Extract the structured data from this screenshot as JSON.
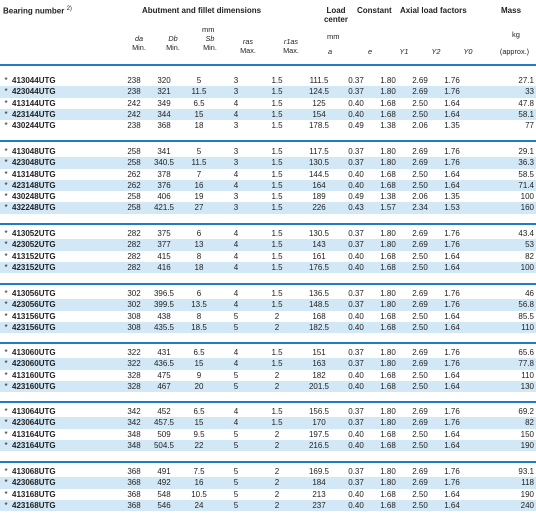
{
  "header": {
    "bearing_number": "Bearing number",
    "bearing_number_note": "2)",
    "abutment_title": "Abutment and fillet dimensions",
    "load_center_title": "Load center",
    "constant_title": "Constant",
    "axial_title": "Axial load factors",
    "mass_title": "Mass",
    "unit_mm_1": "mm",
    "unit_mm_2": "mm",
    "unit_kg": "kg",
    "col_da": "da",
    "col_Db": "Db",
    "col_Sb": "Sb",
    "col_ras": "ras",
    "col_r1as": "r1as",
    "col_a": "a",
    "col_e": "e",
    "col_Y1": "Y1",
    "col_Y2": "Y2",
    "col_Y0": "Y0",
    "min1": "Min.",
    "min2": "Min.",
    "min3": "Min.",
    "max1": "Max.",
    "max2": "Max.",
    "approx": "(approx.)"
  },
  "groups": [
    {
      "rows": [
        {
          "mark": "*",
          "bn": "413044UTG",
          "da": "238",
          "Db": "320",
          "Sb": "5",
          "ras": "3",
          "r1as": "1.5",
          "a": "111.5",
          "e": "0.37",
          "Y1": "1.80",
          "Y2": "2.69",
          "Y0": "1.76",
          "mass": "27.1"
        },
        {
          "mark": "*",
          "bn": "423044UTG",
          "da": "238",
          "Db": "321",
          "Sb": "11.5",
          "ras": "3",
          "r1as": "1.5",
          "a": "124.5",
          "e": "0.37",
          "Y1": "1.80",
          "Y2": "2.69",
          "Y0": "1.76",
          "mass": "33"
        },
        {
          "mark": "*",
          "bn": "413144UTG",
          "da": "242",
          "Db": "349",
          "Sb": "6.5",
          "ras": "4",
          "r1as": "1.5",
          "a": "125",
          "e": "0.40",
          "Y1": "1.68",
          "Y2": "2.50",
          "Y0": "1.64",
          "mass": "47.8"
        },
        {
          "mark": "*",
          "bn": "423144UTG",
          "da": "242",
          "Db": "344",
          "Sb": "15",
          "ras": "4",
          "r1as": "1.5",
          "a": "154",
          "e": "0.40",
          "Y1": "1.68",
          "Y2": "2.50",
          "Y0": "1.64",
          "mass": "58.1"
        },
        {
          "mark": "*",
          "bn": "430244UTG",
          "da": "238",
          "Db": "368",
          "Sb": "18",
          "ras": "3",
          "r1as": "1.5",
          "a": "178.5",
          "e": "0.49",
          "Y1": "1.38",
          "Y2": "2.06",
          "Y0": "1.35",
          "mass": "77"
        }
      ]
    },
    {
      "rows": [
        {
          "mark": "*",
          "bn": "413048UTG",
          "da": "258",
          "Db": "341",
          "Sb": "5",
          "ras": "3",
          "r1as": "1.5",
          "a": "117.5",
          "e": "0.37",
          "Y1": "1.80",
          "Y2": "2.69",
          "Y0": "1.76",
          "mass": "29.1"
        },
        {
          "mark": "*",
          "bn": "423048UTG",
          "da": "258",
          "Db": "340.5",
          "Sb": "11.5",
          "ras": "3",
          "r1as": "1.5",
          "a": "130.5",
          "e": "0.37",
          "Y1": "1.80",
          "Y2": "2.69",
          "Y0": "1.76",
          "mass": "36.3"
        },
        {
          "mark": "*",
          "bn": "413148UTG",
          "da": "262",
          "Db": "378",
          "Sb": "7",
          "ras": "4",
          "r1as": "1.5",
          "a": "144.5",
          "e": "0.40",
          "Y1": "1.68",
          "Y2": "2.50",
          "Y0": "1.64",
          "mass": "58.5"
        },
        {
          "mark": "*",
          "bn": "423148UTG",
          "da": "262",
          "Db": "376",
          "Sb": "16",
          "ras": "4",
          "r1as": "1.5",
          "a": "164",
          "e": "0.40",
          "Y1": "1.68",
          "Y2": "2.50",
          "Y0": "1.64",
          "mass": "71.4"
        },
        {
          "mark": "*",
          "bn": "430248UTG",
          "da": "258",
          "Db": "406",
          "Sb": "19",
          "ras": "3",
          "r1as": "1.5",
          "a": "189",
          "e": "0.49",
          "Y1": "1.38",
          "Y2": "2.06",
          "Y0": "1.35",
          "mass": "100"
        },
        {
          "mark": "*",
          "bn": "432248UTG",
          "da": "258",
          "Db": "421.5",
          "Sb": "27",
          "ras": "3",
          "r1as": "1.5",
          "a": "226",
          "e": "0.43",
          "Y1": "1.57",
          "Y2": "2.34",
          "Y0": "1.53",
          "mass": "160"
        }
      ]
    },
    {
      "rows": [
        {
          "mark": "*",
          "bn": "413052UTG",
          "da": "282",
          "Db": "375",
          "Sb": "6",
          "ras": "4",
          "r1as": "1.5",
          "a": "130.5",
          "e": "0.37",
          "Y1": "1.80",
          "Y2": "2.69",
          "Y0": "1.76",
          "mass": "43.4"
        },
        {
          "mark": "*",
          "bn": "423052UTG",
          "da": "282",
          "Db": "377",
          "Sb": "13",
          "ras": "4",
          "r1as": "1.5",
          "a": "143",
          "e": "0.37",
          "Y1": "1.80",
          "Y2": "2.69",
          "Y0": "1.76",
          "mass": "53"
        },
        {
          "mark": "*",
          "bn": "413152UTG",
          "da": "282",
          "Db": "415",
          "Sb": "8",
          "ras": "4",
          "r1as": "1.5",
          "a": "161",
          "e": "0.40",
          "Y1": "1.68",
          "Y2": "2.50",
          "Y0": "1.64",
          "mass": "82"
        },
        {
          "mark": "*",
          "bn": "423152UTG",
          "da": "282",
          "Db": "416",
          "Sb": "18",
          "ras": "4",
          "r1as": "1.5",
          "a": "176.5",
          "e": "0.40",
          "Y1": "1.68",
          "Y2": "2.50",
          "Y0": "1.64",
          "mass": "100"
        }
      ]
    },
    {
      "rows": [
        {
          "mark": "*",
          "bn": "413056UTG",
          "da": "302",
          "Db": "396.5",
          "Sb": "6",
          "ras": "4",
          "r1as": "1.5",
          "a": "136.5",
          "e": "0.37",
          "Y1": "1.80",
          "Y2": "2.69",
          "Y0": "1.76",
          "mass": "46"
        },
        {
          "mark": "*",
          "bn": "423056UTG",
          "da": "302",
          "Db": "399.5",
          "Sb": "13.5",
          "ras": "4",
          "r1as": "1.5",
          "a": "148.5",
          "e": "0.37",
          "Y1": "1.80",
          "Y2": "2.69",
          "Y0": "1.76",
          "mass": "56.8"
        },
        {
          "mark": "*",
          "bn": "413156UTG",
          "da": "308",
          "Db": "438",
          "Sb": "8",
          "ras": "5",
          "r1as": "2",
          "a": "168",
          "e": "0.40",
          "Y1": "1.68",
          "Y2": "2.50",
          "Y0": "1.64",
          "mass": "85.5"
        },
        {
          "mark": "*",
          "bn": "423156UTG",
          "da": "308",
          "Db": "435.5",
          "Sb": "18.5",
          "ras": "5",
          "r1as": "2",
          "a": "182.5",
          "e": "0.40",
          "Y1": "1.68",
          "Y2": "2.50",
          "Y0": "1.64",
          "mass": "110"
        }
      ]
    },
    {
      "rows": [
        {
          "mark": "*",
          "bn": "413060UTG",
          "da": "322",
          "Db": "431",
          "Sb": "6.5",
          "ras": "4",
          "r1as": "1.5",
          "a": "151",
          "e": "0.37",
          "Y1": "1.80",
          "Y2": "2.69",
          "Y0": "1.76",
          "mass": "65.6"
        },
        {
          "mark": "*",
          "bn": "423060UTG",
          "da": "322",
          "Db": "436.5",
          "Sb": "15",
          "ras": "4",
          "r1as": "1.5",
          "a": "163",
          "e": "0.37",
          "Y1": "1.80",
          "Y2": "2.69",
          "Y0": "1.76",
          "mass": "77.8"
        },
        {
          "mark": "*",
          "bn": "413160UTG",
          "da": "328",
          "Db": "475",
          "Sb": "9",
          "ras": "5",
          "r1as": "2",
          "a": "182",
          "e": "0.40",
          "Y1": "1.68",
          "Y2": "2.50",
          "Y0": "1.64",
          "mass": "110"
        },
        {
          "mark": "*",
          "bn": "423160UTG",
          "da": "328",
          "Db": "467",
          "Sb": "20",
          "ras": "5",
          "r1as": "2",
          "a": "201.5",
          "e": "0.40",
          "Y1": "1.68",
          "Y2": "2.50",
          "Y0": "1.64",
          "mass": "130"
        }
      ]
    },
    {
      "rows": [
        {
          "mark": "*",
          "bn": "413064UTG",
          "da": "342",
          "Db": "452",
          "Sb": "6.5",
          "ras": "4",
          "r1as": "1.5",
          "a": "156.5",
          "e": "0.37",
          "Y1": "1.80",
          "Y2": "2.69",
          "Y0": "1.76",
          "mass": "69.2"
        },
        {
          "mark": "*",
          "bn": "423064UTG",
          "da": "342",
          "Db": "457.5",
          "Sb": "15",
          "ras": "4",
          "r1as": "1.5",
          "a": "170",
          "e": "0.37",
          "Y1": "1.80",
          "Y2": "2.69",
          "Y0": "1.76",
          "mass": "82"
        },
        {
          "mark": "*",
          "bn": "413164UTG",
          "da": "348",
          "Db": "509",
          "Sb": "9.5",
          "ras": "5",
          "r1as": "2",
          "a": "197.5",
          "e": "0.40",
          "Y1": "1.68",
          "Y2": "2.50",
          "Y0": "1.64",
          "mass": "150"
        },
        {
          "mark": "*",
          "bn": "423164UTG",
          "da": "348",
          "Db": "504.5",
          "Sb": "22",
          "ras": "5",
          "r1as": "2",
          "a": "216.5",
          "e": "0.40",
          "Y1": "1.68",
          "Y2": "2.50",
          "Y0": "1.64",
          "mass": "190"
        }
      ]
    },
    {
      "rows": [
        {
          "mark": "*",
          "bn": "413068UTG",
          "da": "368",
          "Db": "491",
          "Sb": "7.5",
          "ras": "5",
          "r1as": "2",
          "a": "169.5",
          "e": "0.37",
          "Y1": "1.80",
          "Y2": "2.69",
          "Y0": "1.76",
          "mass": "93.1"
        },
        {
          "mark": "*",
          "bn": "423068UTG",
          "da": "368",
          "Db": "492",
          "Sb": "16",
          "ras": "5",
          "r1as": "2",
          "a": "184",
          "e": "0.37",
          "Y1": "1.80",
          "Y2": "2.69",
          "Y0": "1.76",
          "mass": "118"
        },
        {
          "mark": "*",
          "bn": "413168UTG",
          "da": "368",
          "Db": "548",
          "Sb": "10.5",
          "ras": "5",
          "r1as": "2",
          "a": "213",
          "e": "0.40",
          "Y1": "1.68",
          "Y2": "2.50",
          "Y0": "1.64",
          "mass": "190"
        },
        {
          "mark": "*",
          "bn": "423168UTG",
          "da": "368",
          "Db": "546",
          "Sb": "24",
          "ras": "5",
          "r1as": "2",
          "a": "237",
          "e": "0.40",
          "Y1": "1.68",
          "Y2": "2.50",
          "Y0": "1.64",
          "mass": "240"
        }
      ]
    }
  ],
  "colors": {
    "rule": "#1e7fbe",
    "shade": "#d2e8f6"
  }
}
